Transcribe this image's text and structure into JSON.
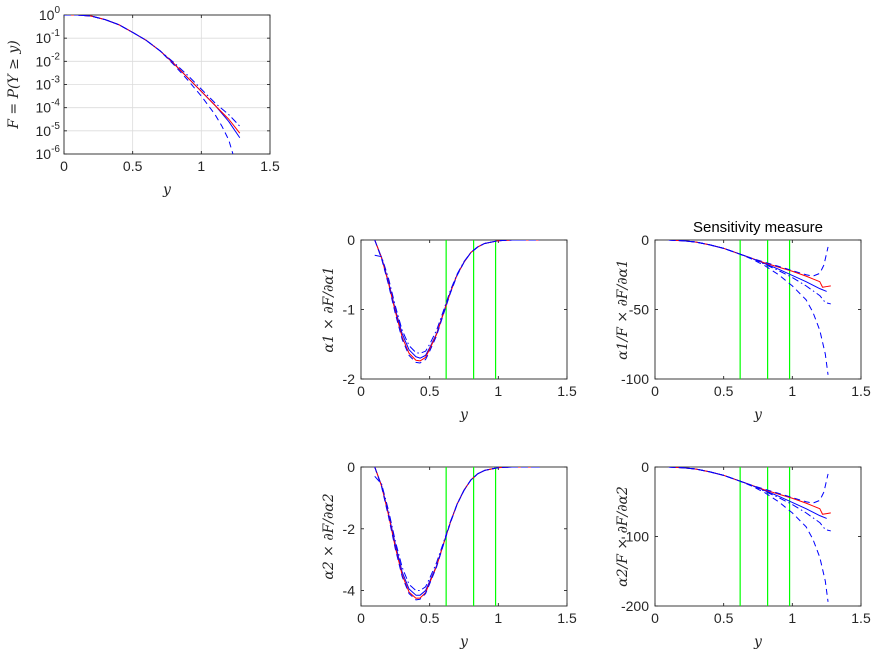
{
  "colors": {
    "blue": "#0000ff",
    "red": "#ff0000",
    "green": "#00ff00",
    "grid": "#dcdcdc",
    "axis": "#262626"
  },
  "chart_data": [
    {
      "id": "survival",
      "type": "line",
      "title": "",
      "xlabel": "y",
      "ylabel": "F = P(Y ≥ y)",
      "yscale": "log",
      "grid": true,
      "xlim": [
        0,
        1.5
      ],
      "ylim_exponent": [
        -6,
        0
      ],
      "xticks": [
        "0",
        "0.5",
        "1",
        "1.5"
      ],
      "ytick_base": "10",
      "ytick_exponents": [
        "0",
        "-1",
        "-2",
        "-3",
        "-4",
        "-5",
        "-6"
      ],
      "series": [
        {
          "color": "blue",
          "style": "solid",
          "x": [
            0,
            0.1,
            0.2,
            0.3,
            0.4,
            0.5,
            0.6,
            0.7,
            0.8,
            0.9,
            1.0,
            1.1,
            1.2,
            1.28
          ],
          "log10y": [
            0,
            0,
            -0.05,
            -0.2,
            -0.42,
            -0.75,
            -1.1,
            -1.55,
            -2.1,
            -2.7,
            -3.3,
            -3.9,
            -4.6,
            -5.3
          ]
        },
        {
          "color": "red",
          "style": "solid",
          "x": [
            0,
            0.1,
            0.2,
            0.3,
            0.4,
            0.5,
            0.6,
            0.7,
            0.8,
            0.9,
            1.0,
            1.1,
            1.2,
            1.28
          ],
          "log10y": [
            0,
            0,
            -0.05,
            -0.2,
            -0.42,
            -0.75,
            -1.1,
            -1.55,
            -2.1,
            -2.7,
            -3.3,
            -3.9,
            -4.5,
            -5.1
          ]
        },
        {
          "color": "blue",
          "style": "dashdot",
          "x": [
            0,
            0.1,
            0.2,
            0.3,
            0.4,
            0.5,
            0.6,
            0.7,
            0.8,
            0.9,
            1.0,
            1.1,
            1.2,
            1.28
          ],
          "log10y": [
            0,
            0,
            -0.05,
            -0.2,
            -0.42,
            -0.75,
            -1.1,
            -1.55,
            -2.05,
            -2.6,
            -3.2,
            -3.8,
            -4.3,
            -4.8
          ]
        },
        {
          "color": "blue",
          "style": "dashed",
          "x": [
            0,
            0.1,
            0.2,
            0.3,
            0.4,
            0.5,
            0.6,
            0.7,
            0.8,
            0.9,
            1.0,
            1.1,
            1.15,
            1.2,
            1.23
          ],
          "log10y": [
            0,
            0,
            -0.05,
            -0.2,
            -0.42,
            -0.75,
            -1.1,
            -1.55,
            -2.15,
            -2.8,
            -3.5,
            -4.3,
            -4.8,
            -5.4,
            -6
          ]
        }
      ]
    },
    {
      "id": "d-alpha1",
      "type": "line",
      "title": "",
      "xlabel": "y",
      "ylabel": "α1 × ∂F/∂α1",
      "xlim": [
        0,
        1.5
      ],
      "ylim": [
        -2,
        0
      ],
      "xticks": [
        "0",
        "0.5",
        "1",
        "1.5"
      ],
      "yticks": [
        "0",
        "-1",
        "-2"
      ],
      "vlines": [
        0.62,
        0.82,
        0.98
      ],
      "series": [
        {
          "color": "blue",
          "style": "solid",
          "x": [
            0.1,
            0.15,
            0.2,
            0.25,
            0.3,
            0.35,
            0.4,
            0.43,
            0.47,
            0.5,
            0.55,
            0.6,
            0.65,
            0.7,
            0.75,
            0.8,
            0.85,
            0.9,
            1.0,
            1.1,
            1.2,
            1.3
          ],
          "y": [
            0,
            -0.25,
            -0.6,
            -1.0,
            -1.35,
            -1.58,
            -1.68,
            -1.7,
            -1.66,
            -1.55,
            -1.35,
            -1.05,
            -0.75,
            -0.5,
            -0.32,
            -0.18,
            -0.1,
            -0.05,
            -0.01,
            0,
            0,
            0
          ]
        },
        {
          "color": "red",
          "style": "solid",
          "x": [
            0.1,
            0.15,
            0.2,
            0.25,
            0.3,
            0.35,
            0.4,
            0.43,
            0.47,
            0.5,
            0.55,
            0.6,
            0.65,
            0.7,
            0.75,
            0.8,
            0.85,
            0.9,
            1.0,
            1.1,
            1.2,
            1.3
          ],
          "y": [
            0,
            -0.26,
            -0.62,
            -1.03,
            -1.4,
            -1.63,
            -1.73,
            -1.74,
            -1.69,
            -1.57,
            -1.36,
            -1.06,
            -0.76,
            -0.5,
            -0.32,
            -0.18,
            -0.1,
            -0.05,
            -0.01,
            0,
            0,
            0
          ]
        },
        {
          "color": "blue",
          "style": "dashdot",
          "x": [
            0.1,
            0.15,
            0.2,
            0.25,
            0.3,
            0.35,
            0.4,
            0.43,
            0.47,
            0.5,
            0.55,
            0.6,
            0.65,
            0.7,
            0.75,
            0.8,
            0.85,
            0.9,
            1.0,
            1.1,
            1.2,
            1.3
          ],
          "y": [
            -0.22,
            -0.24,
            -0.55,
            -0.95,
            -1.3,
            -1.52,
            -1.62,
            -1.63,
            -1.6,
            -1.5,
            -1.3,
            -1.02,
            -0.73,
            -0.49,
            -0.31,
            -0.18,
            -0.1,
            -0.05,
            -0.01,
            0,
            0,
            0
          ]
        },
        {
          "color": "blue",
          "style": "dashed",
          "x": [
            0.1,
            0.15,
            0.2,
            0.25,
            0.3,
            0.35,
            0.4,
            0.43,
            0.47,
            0.5,
            0.55,
            0.6,
            0.65,
            0.7,
            0.75,
            0.8,
            0.85,
            0.9,
            1.0,
            1.1,
            1.2,
            1.3
          ],
          "y": [
            0,
            -0.27,
            -0.64,
            -1.06,
            -1.43,
            -1.66,
            -1.76,
            -1.77,
            -1.72,
            -1.6,
            -1.38,
            -1.07,
            -0.77,
            -0.51,
            -0.32,
            -0.18,
            -0.1,
            -0.05,
            -0.01,
            0,
            0,
            0
          ]
        }
      ]
    },
    {
      "id": "s-alpha1",
      "type": "line",
      "title": "Sensitivity measure",
      "xlabel": "y",
      "ylabel": "α1/F × ∂F/∂α1",
      "xlim": [
        0,
        1.5
      ],
      "ylim": [
        -100,
        0
      ],
      "xticks": [
        "0",
        "0.5",
        "1",
        "1.5"
      ],
      "yticks": [
        "0",
        "-50",
        "-100"
      ],
      "vlines": [
        0.62,
        0.82,
        0.98
      ],
      "series": [
        {
          "color": "blue",
          "style": "solid",
          "x": [
            0.1,
            0.2,
            0.3,
            0.4,
            0.5,
            0.6,
            0.7,
            0.8,
            0.9,
            1.0,
            1.1,
            1.2,
            1.25
          ],
          "y": [
            0,
            -0.5,
            -1.5,
            -3.5,
            -6,
            -9.5,
            -13,
            -17,
            -21,
            -25.5,
            -30,
            -35,
            -37
          ]
        },
        {
          "color": "red",
          "style": "solid",
          "x": [
            0.1,
            0.2,
            0.3,
            0.4,
            0.5,
            0.6,
            0.7,
            0.8,
            0.9,
            1.0,
            1.1,
            1.15,
            1.2,
            1.22,
            1.25,
            1.28
          ],
          "y": [
            0,
            -0.5,
            -1.5,
            -3.5,
            -6,
            -9.5,
            -13,
            -16.5,
            -19.5,
            -22.5,
            -26,
            -28,
            -30,
            -34,
            -33.5,
            -33
          ]
        },
        {
          "color": "blue",
          "style": "dashdot",
          "x": [
            0.1,
            0.2,
            0.3,
            0.4,
            0.5,
            0.6,
            0.7,
            0.8,
            0.9,
            1.0,
            1.1,
            1.2,
            1.24,
            1.28
          ],
          "y": [
            0,
            -0.5,
            -1.5,
            -3.5,
            -6,
            -9.5,
            -13,
            -17.5,
            -22,
            -27,
            -33,
            -40,
            -45,
            -46
          ]
        },
        {
          "color": "blue",
          "style": "dashed",
          "x": [
            0.1,
            0.2,
            0.3,
            0.4,
            0.5,
            0.6,
            0.7,
            0.8,
            0.9,
            1.0,
            1.1,
            1.15,
            1.2,
            1.23,
            1.26
          ],
          "y": [
            0,
            -0.5,
            -1.5,
            -3.5,
            -6,
            -9.5,
            -13,
            -16,
            -19,
            -22,
            -25,
            -26,
            -24,
            -18,
            -5
          ]
        },
        {
          "color": "blue",
          "style": "dashed",
          "x": [
            0.1,
            0.2,
            0.3,
            0.4,
            0.5,
            0.6,
            0.7,
            0.8,
            0.9,
            1.0,
            1.1,
            1.15,
            1.2,
            1.24,
            1.26
          ],
          "y": [
            0,
            -0.5,
            -1.5,
            -3.5,
            -6,
            -9.5,
            -13.5,
            -18.5,
            -25,
            -33,
            -43,
            -52,
            -65,
            -82,
            -97
          ]
        }
      ]
    },
    {
      "id": "d-alpha2",
      "type": "line",
      "title": "",
      "xlabel": "y",
      "ylabel": "α2 × ∂F/∂α2",
      "xlim": [
        0,
        1.5
      ],
      "ylim": [
        -4.5,
        0
      ],
      "xticks": [
        "0",
        "0.5",
        "1",
        "1.5"
      ],
      "yticks": [
        "0",
        "-2",
        "-4"
      ],
      "vlines": [
        0.62,
        0.82,
        0.98
      ],
      "series": [
        {
          "color": "blue",
          "style": "solid",
          "x": [
            0.1,
            0.15,
            0.2,
            0.25,
            0.3,
            0.35,
            0.4,
            0.43,
            0.47,
            0.5,
            0.55,
            0.6,
            0.65,
            0.7,
            0.75,
            0.8,
            0.85,
            0.9,
            1.0,
            1.1,
            1.2,
            1.3
          ],
          "y": [
            0,
            -0.6,
            -1.5,
            -2.5,
            -3.4,
            -3.95,
            -4.15,
            -4.15,
            -4.0,
            -3.7,
            -3.2,
            -2.5,
            -1.8,
            -1.2,
            -0.75,
            -0.42,
            -0.22,
            -0.11,
            -0.02,
            0,
            0,
            0
          ]
        },
        {
          "color": "red",
          "style": "solid",
          "x": [
            0.1,
            0.15,
            0.2,
            0.25,
            0.3,
            0.35,
            0.4,
            0.43,
            0.47,
            0.5,
            0.55,
            0.6,
            0.65,
            0.7,
            0.75,
            0.8,
            0.85,
            0.9,
            1.0,
            1.1,
            1.2,
            1.3
          ],
          "y": [
            0,
            -0.62,
            -1.55,
            -2.6,
            -3.5,
            -4.05,
            -4.25,
            -4.24,
            -4.07,
            -3.75,
            -3.22,
            -2.5,
            -1.8,
            -1.2,
            -0.75,
            -0.42,
            -0.22,
            -0.11,
            -0.02,
            0,
            0,
            0
          ]
        },
        {
          "color": "blue",
          "style": "dashdot",
          "x": [
            0.1,
            0.15,
            0.2,
            0.25,
            0.3,
            0.35,
            0.4,
            0.43,
            0.47,
            0.5,
            0.55,
            0.6,
            0.65,
            0.7,
            0.75,
            0.8,
            0.85,
            0.9,
            1.0,
            1.1,
            1.2,
            1.3
          ],
          "y": [
            -0.3,
            -0.55,
            -1.4,
            -2.4,
            -3.25,
            -3.8,
            -4.0,
            -4.0,
            -3.88,
            -3.6,
            -3.1,
            -2.45,
            -1.78,
            -1.2,
            -0.75,
            -0.42,
            -0.22,
            -0.11,
            -0.02,
            0,
            0,
            0
          ]
        },
        {
          "color": "blue",
          "style": "dashed",
          "x": [
            0.1,
            0.15,
            0.2,
            0.25,
            0.3,
            0.35,
            0.4,
            0.43,
            0.47,
            0.5,
            0.55,
            0.6,
            0.65,
            0.7,
            0.75,
            0.8,
            0.85,
            0.9,
            1.0,
            1.1,
            1.2,
            1.3
          ],
          "y": [
            0,
            -0.64,
            -1.6,
            -2.65,
            -3.55,
            -4.1,
            -4.3,
            -4.28,
            -4.1,
            -3.78,
            -3.24,
            -2.52,
            -1.82,
            -1.21,
            -0.76,
            -0.42,
            -0.22,
            -0.11,
            -0.02,
            0,
            0,
            0
          ]
        }
      ]
    },
    {
      "id": "s-alpha2",
      "type": "line",
      "title": "",
      "xlabel": "y",
      "ylabel": "α2/F × ∂F/∂α2",
      "xlim": [
        0,
        1.5
      ],
      "ylim": [
        -200,
        0
      ],
      "xticks": [
        "0",
        "0.5",
        "1",
        "1.5"
      ],
      "yticks": [
        "0",
        "-100",
        "-200"
      ],
      "vlines": [
        0.62,
        0.82,
        0.98
      ],
      "series": [
        {
          "color": "blue",
          "style": "solid",
          "x": [
            0.1,
            0.2,
            0.3,
            0.4,
            0.5,
            0.6,
            0.7,
            0.8,
            0.9,
            1.0,
            1.1,
            1.2,
            1.25
          ],
          "y": [
            0,
            -1,
            -3,
            -7,
            -12,
            -19,
            -26,
            -34,
            -42,
            -51,
            -60,
            -70,
            -74
          ]
        },
        {
          "color": "red",
          "style": "solid",
          "x": [
            0.1,
            0.2,
            0.3,
            0.4,
            0.5,
            0.6,
            0.7,
            0.8,
            0.9,
            1.0,
            1.1,
            1.15,
            1.2,
            1.22,
            1.25,
            1.28
          ],
          "y": [
            0,
            -1,
            -3,
            -7,
            -12,
            -19,
            -26,
            -33,
            -39,
            -45,
            -52,
            -56,
            -60,
            -68,
            -67,
            -66
          ]
        },
        {
          "color": "blue",
          "style": "dashdot",
          "x": [
            0.1,
            0.2,
            0.3,
            0.4,
            0.5,
            0.6,
            0.7,
            0.8,
            0.9,
            1.0,
            1.1,
            1.2,
            1.24,
            1.28
          ],
          "y": [
            0,
            -1,
            -3,
            -7,
            -12,
            -19,
            -26,
            -35,
            -44,
            -54,
            -66,
            -80,
            -90,
            -92
          ]
        },
        {
          "color": "blue",
          "style": "dashed",
          "x": [
            0.1,
            0.2,
            0.3,
            0.4,
            0.5,
            0.6,
            0.7,
            0.8,
            0.9,
            1.0,
            1.1,
            1.15,
            1.2,
            1.23,
            1.26
          ],
          "y": [
            0,
            -1,
            -3,
            -7,
            -12,
            -19,
            -26,
            -32,
            -38,
            -44,
            -50,
            -52,
            -48,
            -36,
            -10
          ]
        },
        {
          "color": "blue",
          "style": "dashed",
          "x": [
            0.1,
            0.2,
            0.3,
            0.4,
            0.5,
            0.6,
            0.7,
            0.8,
            0.9,
            1.0,
            1.1,
            1.15,
            1.2,
            1.24,
            1.26
          ],
          "y": [
            0,
            -1,
            -3,
            -7,
            -12,
            -19,
            -27,
            -37,
            -50,
            -66,
            -86,
            -104,
            -130,
            -164,
            -194
          ]
        }
      ]
    }
  ]
}
